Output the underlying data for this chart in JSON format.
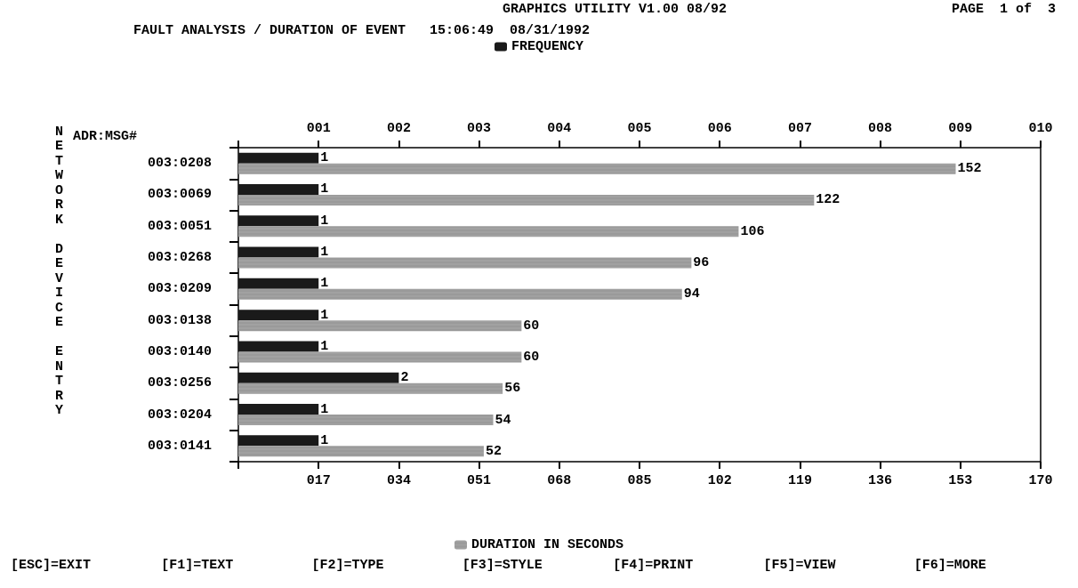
{
  "chart_data": {
    "type": "bar",
    "orientation": "horizontal",
    "title": "FAULT ANALYSIS / DURATION OF EVENT   15:06:49  08/31/1992",
    "ylabel": "NETWORK DEVICE ENTRY",
    "annotations": [
      "GRAPHICS UTILITY V1.00 08/92",
      "PAGE  1 of  3",
      "ADR:MSG#",
      "[ESC]=EXIT",
      "[F1]=TEXT",
      "[F2]=TYPE",
      "[F3]=STYLE",
      "[F4]=PRINT",
      "[F5]=VIEW",
      "[F6]=MORE"
    ],
    "categories": [
      "003:0208",
      "003:0069",
      "003:0051",
      "003:0268",
      "003:0209",
      "003:0138",
      "003:0140",
      "003:0256",
      "003:0204",
      "003:0141"
    ],
    "series": [
      {
        "name": "FREQUENCY",
        "color": "#1a1a1a",
        "axis": "x2",
        "values": [
          1,
          1,
          1,
          1,
          1,
          1,
          1,
          2,
          1,
          1
        ]
      },
      {
        "name": "DURATION IN SECONDS",
        "color": "#9a9a9a",
        "values": [
          152,
          122,
          106,
          96,
          94,
          60,
          60,
          56,
          54,
          52
        ]
      }
    ],
    "xlim": [
      0,
      170
    ],
    "xticks": [
      {
        "value": 0,
        "label": null
      },
      {
        "value": 17,
        "label": "017"
      },
      {
        "value": 34,
        "label": "034"
      },
      {
        "value": 51,
        "label": "051"
      },
      {
        "value": 68,
        "label": "068"
      },
      {
        "value": 85,
        "label": "085"
      },
      {
        "value": 102,
        "label": "102"
      },
      {
        "value": 119,
        "label": "119"
      },
      {
        "value": 136,
        "label": "136"
      },
      {
        "value": 153,
        "label": "153"
      },
      {
        "value": 170,
        "label": "170"
      }
    ],
    "x2lim": [
      0,
      10
    ],
    "x2ticks": [
      {
        "value": 0,
        "label": null
      },
      {
        "value": 1,
        "label": "001"
      },
      {
        "value": 2,
        "label": "002"
      },
      {
        "value": 3,
        "label": "003"
      },
      {
        "value": 4,
        "label": "004"
      },
      {
        "value": 5,
        "label": "005"
      },
      {
        "value": 6,
        "label": "006"
      },
      {
        "value": 7,
        "label": "007"
      },
      {
        "value": 8,
        "label": "008"
      },
      {
        "value": 9,
        "label": "009"
      },
      {
        "value": 10,
        "label": "010"
      }
    ],
    "data_labels": true,
    "grid": false,
    "legend": "top"
  }
}
